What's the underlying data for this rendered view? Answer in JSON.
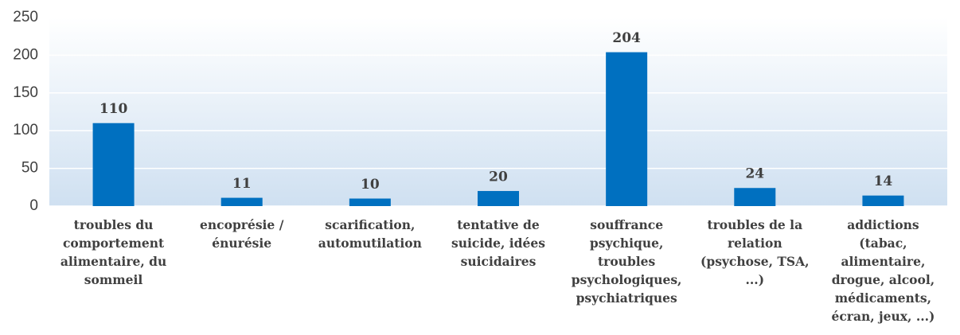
{
  "chart_data": {
    "type": "bar",
    "categories": [
      "troubles du comportement alimentaire, du sommeil",
      "encoprésie / énurésie",
      "scarification, automutilation",
      "tentative de suicide, idées suicidaires",
      "souffrance psychique, troubles psychologiques, psychiatriques",
      "troubles de la relation (psychose, TSA, ...)",
      "addictions (tabac, alimentaire, drogue, alcool, médicaments, écran, jeux, ...)"
    ],
    "values": [
      110,
      11,
      10,
      20,
      204,
      24,
      14
    ],
    "color": "#0070c0",
    "ylim": [
      0,
      250
    ],
    "yticks": [
      0,
      50,
      100,
      150,
      200,
      250
    ],
    "grid": true
  }
}
